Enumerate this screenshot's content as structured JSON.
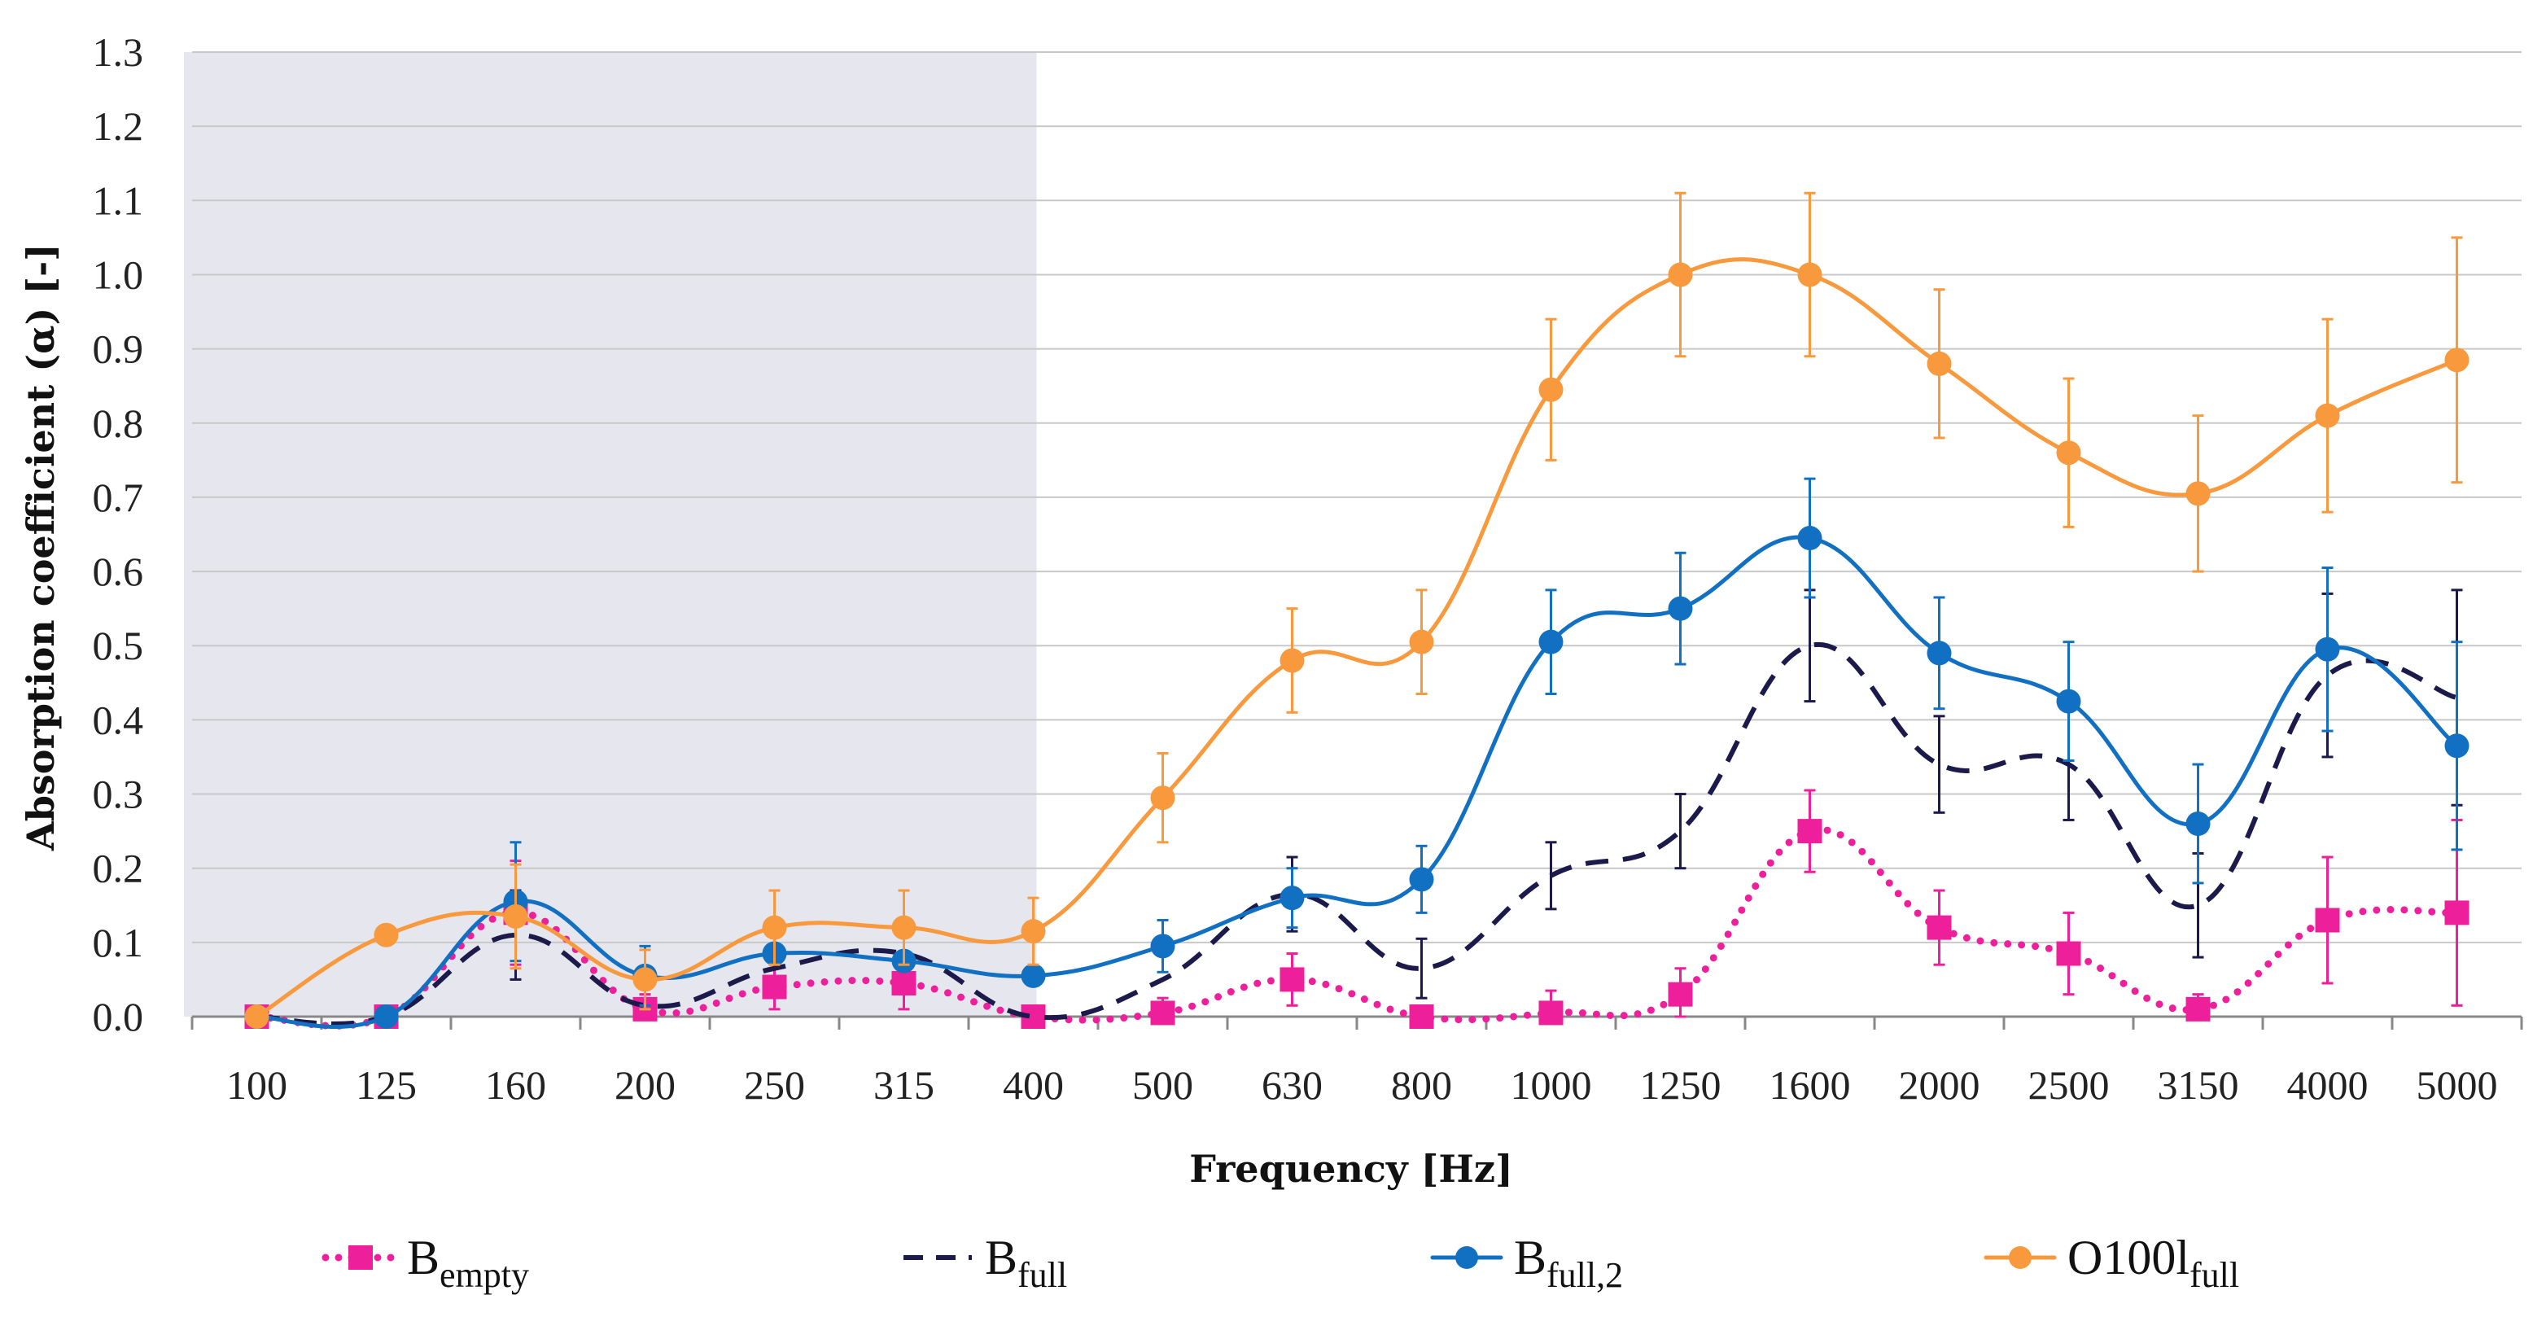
{
  "chart_data": {
    "type": "line",
    "title": "",
    "xlabel": "Frequency [Hz]",
    "ylabel": "Absorption coefficient (α)  [-]",
    "ylim": [
      0,
      1.3
    ],
    "yticks": [
      "0.0",
      "0.1",
      "0.2",
      "0.3",
      "0.4",
      "0.5",
      "0.6",
      "0.7",
      "0.8",
      "0.9",
      "1.0",
      "1.1",
      "1.2",
      "1.3"
    ],
    "categories": [
      "100",
      "125",
      "160",
      "200",
      "250",
      "315",
      "400",
      "500",
      "630",
      "800",
      "1000",
      "1250",
      "1600",
      "2000",
      "2500",
      "3150",
      "4000",
      "5000"
    ],
    "shaded_region": {
      "from_category": "100",
      "to_category": "400",
      "color": "#e6e6ee"
    },
    "legend_position": "bottom",
    "series": [
      {
        "name": "B",
        "subscript": "empty",
        "color": "#ee1f9a",
        "line_style": "dotted",
        "marker": "square",
        "values": [
          0.0,
          0.0,
          0.14,
          0.01,
          0.04,
          0.045,
          0.0,
          0.005,
          0.05,
          0.0,
          0.005,
          0.03,
          0.25,
          0.12,
          0.085,
          0.01,
          0.13,
          0.14
        ],
        "errors": [
          0.0,
          0.0,
          0.07,
          0.02,
          0.03,
          0.035,
          0.0,
          0.02,
          0.035,
          0.0,
          0.03,
          0.035,
          0.055,
          0.05,
          0.055,
          0.02,
          0.085,
          0.125
        ]
      },
      {
        "name": "B",
        "subscript": "full",
        "color": "#1b1a4b",
        "line_style": "dashed",
        "marker": "none",
        "values": [
          0.0,
          0.0,
          0.11,
          0.015,
          0.065,
          0.085,
          0.0,
          0.05,
          0.165,
          0.065,
          0.19,
          0.25,
          0.5,
          0.34,
          0.34,
          0.15,
          0.46,
          0.43
        ],
        "errors": [
          0.0,
          0.0,
          0.06,
          0.0,
          0.0,
          0.0,
          0.0,
          0.0,
          0.05,
          0.04,
          0.045,
          0.05,
          0.075,
          0.065,
          0.075,
          0.07,
          0.11,
          0.145
        ]
      },
      {
        "name": "B",
        "subscript": "full,2",
        "color": "#1170c2",
        "line_style": "solid",
        "marker": "circle",
        "values": [
          0.0,
          0.0,
          0.155,
          0.055,
          0.085,
          0.075,
          0.055,
          0.095,
          0.16,
          0.185,
          0.505,
          0.55,
          0.645,
          0.49,
          0.425,
          0.26,
          0.495,
          0.365
        ],
        "errors": [
          0.0,
          0.0,
          0.08,
          0.04,
          0.0,
          0.0,
          0.0,
          0.035,
          0.04,
          0.045,
          0.07,
          0.075,
          0.08,
          0.075,
          0.08,
          0.08,
          0.11,
          0.14
        ]
      },
      {
        "name": "O100l",
        "subscript": "full",
        "color": "#f7993c",
        "line_style": "solid",
        "marker": "circle",
        "values": [
          0.0,
          0.11,
          0.135,
          0.05,
          0.12,
          0.12,
          0.115,
          0.295,
          0.48,
          0.505,
          0.845,
          1.0,
          1.0,
          0.88,
          0.76,
          0.705,
          0.81,
          0.885
        ],
        "errors": [
          0.0,
          0.0,
          0.07,
          0.04,
          0.05,
          0.05,
          0.045,
          0.06,
          0.07,
          0.07,
          0.095,
          0.11,
          0.11,
          0.1,
          0.1,
          0.105,
          0.13,
          0.165
        ]
      }
    ]
  }
}
